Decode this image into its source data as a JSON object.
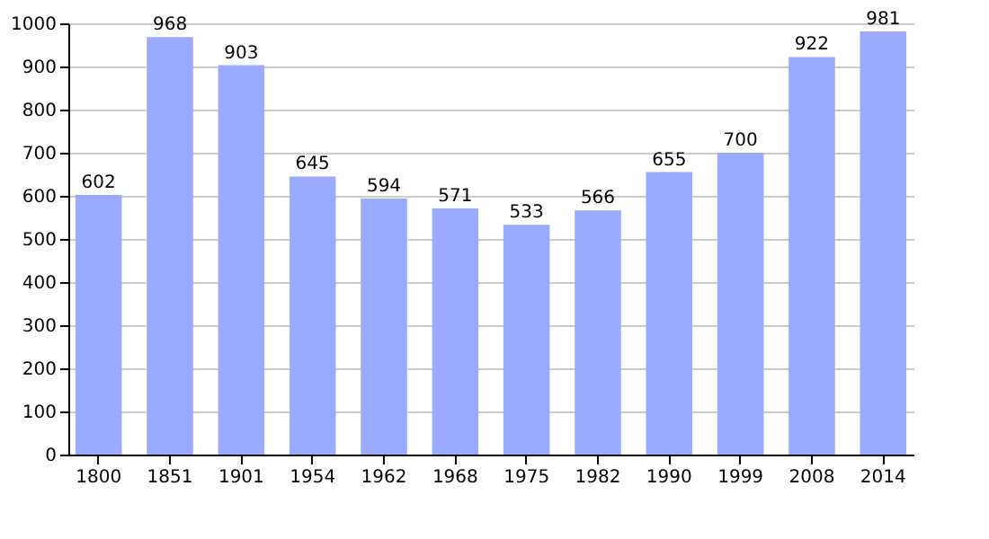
{
  "chart_data": {
    "type": "bar",
    "categories": [
      "1800",
      "1851",
      "1901",
      "1954",
      "1962",
      "1968",
      "1975",
      "1982",
      "1990",
      "1999",
      "2008",
      "2014"
    ],
    "values": [
      602,
      968,
      903,
      645,
      594,
      571,
      533,
      566,
      655,
      700,
      922,
      981
    ],
    "color": "#99aaff",
    "ylim": [
      0,
      1000
    ],
    "yticks": [
      0,
      100,
      200,
      300,
      400,
      500,
      600,
      700,
      800,
      900,
      1000
    ],
    "grid": "y",
    "data_labels": true
  }
}
